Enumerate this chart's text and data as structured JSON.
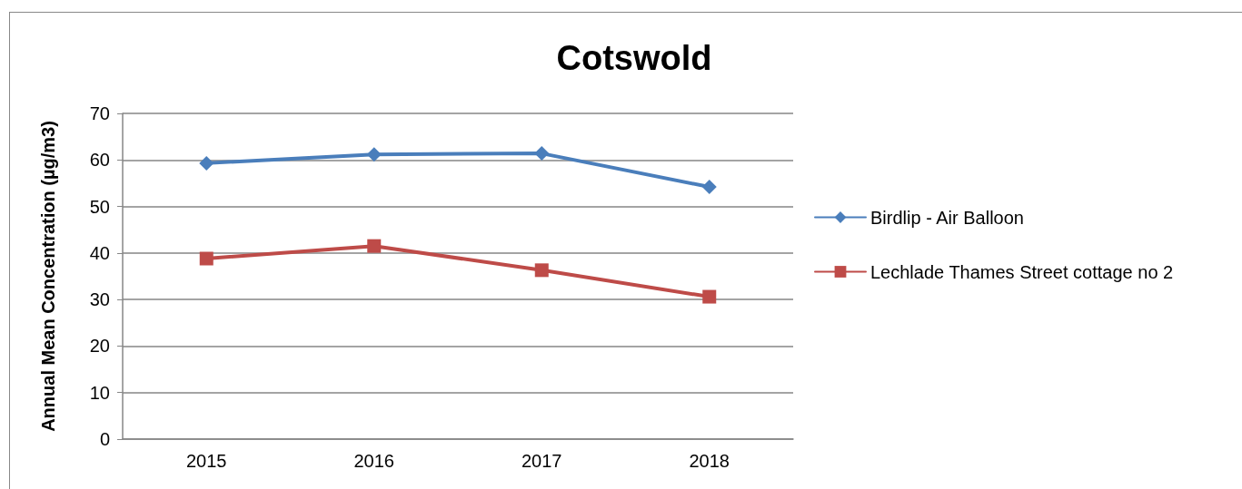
{
  "chart_data": {
    "type": "line",
    "title": "Cotswold",
    "ylabel": "Annual Mean Concentration (µg/m3)",
    "categories": [
      "2015",
      "2016",
      "2017",
      "2018"
    ],
    "series": [
      {
        "name": "Birdlip - Air Balloon",
        "color": "#4a7ebb",
        "marker": "diamond",
        "values": [
          59.3,
          61.2,
          61.4,
          54.2
        ]
      },
      {
        "name": "Lechlade Thames Street cottage no 2",
        "color": "#be4b48",
        "marker": "square",
        "values": [
          38.8,
          41.5,
          36.3,
          30.6
        ]
      }
    ],
    "ylim": [
      0,
      70
    ],
    "yticks": [
      0,
      10,
      20,
      30,
      40,
      50,
      60,
      70
    ],
    "grid": "y",
    "legend": "right",
    "line_style": "solid"
  }
}
